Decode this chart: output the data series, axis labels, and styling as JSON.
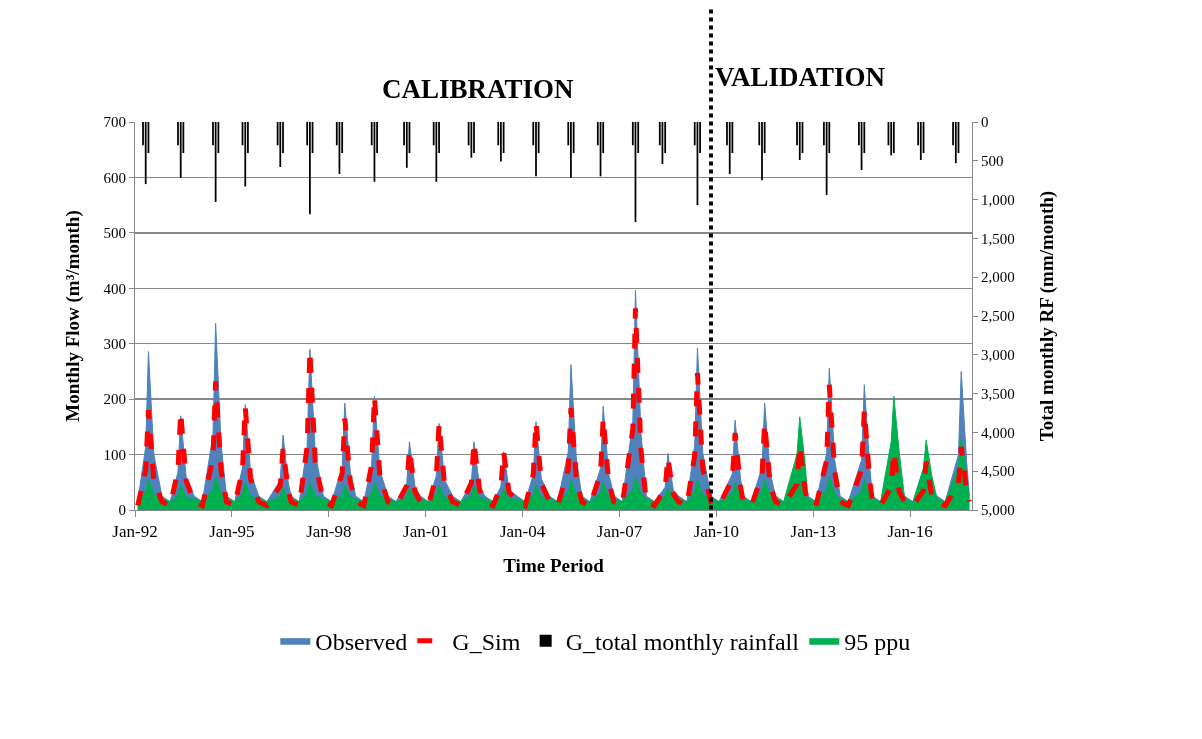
{
  "chart_data": {
    "type": "area",
    "xlabel": "Time Period",
    "ylabel": "Monthly Flow (m³/month)",
    "y2label": "Total monthly RF (mm/month)",
    "annotations": [
      "CALIBRATION",
      "VALIDATION"
    ],
    "x": [
      "1992-02",
      "1992-05",
      "1992-06",
      "1992-08",
      "1992-11",
      "1993-02",
      "1993-05",
      "1993-06",
      "1993-08",
      "1993-11",
      "1994-02",
      "1994-06",
      "1994-07",
      "1994-09",
      "1994-11",
      "1995-02",
      "1995-05",
      "1995-06",
      "1995-08",
      "1995-11",
      "1996-02",
      "1996-07",
      "1996-08",
      "1996-10",
      "1996-11",
      "1997-02",
      "1997-05",
      "1997-06",
      "1997-08",
      "1997-11",
      "1998-02",
      "1998-06",
      "1998-07",
      "1998-09",
      "1998-11",
      "1999-02",
      "1999-05",
      "1999-06",
      "1999-08",
      "1999-11",
      "2000-02",
      "2000-06",
      "2000-07",
      "2000-09",
      "2000-11",
      "2001-02",
      "2001-05",
      "2001-06",
      "2001-08",
      "2001-11",
      "2002-02",
      "2002-06",
      "2002-07",
      "2002-09",
      "2002-11",
      "2003-02",
      "2003-05",
      "2003-06",
      "2003-08",
      "2003-11",
      "2004-02",
      "2004-05",
      "2004-06",
      "2004-08",
      "2004-11",
      "2005-02",
      "2005-06",
      "2005-07",
      "2005-09",
      "2005-11",
      "2006-02",
      "2006-06",
      "2006-07",
      "2006-09",
      "2006-11",
      "2007-02",
      "2007-06",
      "2007-07",
      "2007-09",
      "2007-11",
      "2008-02",
      "2008-06",
      "2008-07",
      "2008-09",
      "2008-11",
      "2009-02",
      "2009-05",
      "2009-06",
      "2009-08",
      "2009-11",
      "2010-02",
      "2010-07",
      "2010-08",
      "2010-10",
      "2010-11",
      "2011-02",
      "2011-06",
      "2011-07",
      "2011-09",
      "2011-11",
      "2012-02",
      "2012-07",
      "2012-08",
      "2012-10",
      "2012-11",
      "2013-02",
      "2013-06",
      "2013-07",
      "2013-09",
      "2013-11",
      "2014-02",
      "2014-07",
      "2014-08",
      "2014-10",
      "2014-11",
      "2015-02",
      "2015-06",
      "2015-07",
      "2015-09",
      "2015-11",
      "2016-02",
      "2016-06",
      "2016-07",
      "2016-09",
      "2016-11",
      "2017-02",
      "2017-07",
      "2017-08",
      "2017-10",
      "2017-11"
    ],
    "series": [
      {
        "name": "Observed",
        "color": "#4f81bd",
        "values": [
          15,
          114,
          286,
          100,
          25,
          15,
          68,
          170,
          60,
          25,
          15,
          135,
          337,
          118,
          25,
          15,
          76,
          190,
          67,
          25,
          15,
          54,
          135,
          47,
          25,
          15,
          116,
          290,
          102,
          25,
          15,
          77,
          193,
          68,
          25,
          15,
          82,
          205,
          72,
          25,
          15,
          49,
          123,
          43,
          25,
          15,
          62,
          156,
          55,
          25,
          15,
          49,
          123,
          43,
          25,
          15,
          42,
          105,
          37,
          25,
          15,
          64,
          159,
          56,
          25,
          15,
          105,
          262,
          92,
          25,
          15,
          75,
          187,
          65,
          25,
          15,
          159,
          397,
          139,
          25,
          15,
          41,
          102,
          36,
          25,
          15,
          117,
          292,
          102,
          25,
          15,
          65,
          162,
          57,
          25,
          15,
          77,
          193,
          68,
          25,
          15,
          47,
          117,
          41,
          25,
          15,
          102,
          256,
          90,
          25,
          15,
          90,
          226,
          79,
          25,
          15,
          44,
          110,
          39,
          25,
          15,
          43,
          108,
          38,
          25,
          15,
          100,
          250,
          88,
          25
        ]
      },
      {
        "name": "G_Sim",
        "type": "line",
        "line_style": "dashed",
        "color": "#ff0000",
        "values": [
          8,
          72,
          180,
          54,
          15,
          8,
          71,
          177,
          53,
          15,
          8,
          93,
          232,
          70,
          15,
          8,
          74,
          186,
          56,
          15,
          8,
          44,
          110,
          33,
          15,
          8,
          115,
          288,
          86,
          15,
          8,
          66,
          165,
          50,
          15,
          8,
          82,
          205,
          62,
          15,
          8,
          44,
          110,
          33,
          15,
          8,
          62,
          156,
          47,
          15,
          8,
          49,
          123,
          37,
          15,
          8,
          42,
          105,
          32,
          15,
          8,
          64,
          159,
          48,
          15,
          8,
          74,
          184,
          55,
          15,
          8,
          66,
          166,
          50,
          15,
          8,
          146,
          364,
          109,
          15,
          8,
          38,
          95,
          29,
          15,
          8,
          99,
          247,
          74,
          15,
          8,
          56,
          139,
          42,
          15,
          8,
          63,
          157,
          47,
          15,
          8,
          47,
          117,
          35,
          15,
          8,
          90,
          226,
          68,
          15,
          8,
          72,
          180,
          54,
          15,
          8,
          42,
          105,
          32,
          15,
          8,
          35,
          87,
          26,
          15,
          8,
          46,
          114,
          34,
          15
        ]
      },
      {
        "name": "G_total monthly rainfall",
        "type": "bar",
        "axis": "y2",
        "color": "#000000",
        "x": [
          "1992-04",
          "1992-05",
          "1992-06",
          "1993-05",
          "1993-06",
          "1993-07",
          "1994-06",
          "1994-07",
          "1994-08",
          "1995-05",
          "1995-06",
          "1995-07",
          "1996-06",
          "1996-07",
          "1996-08",
          "1997-05",
          "1997-06",
          "1997-07",
          "1998-04",
          "1998-05",
          "1998-06",
          "1999-05",
          "1999-06",
          "1999-07",
          "2000-05",
          "2000-06",
          "2000-07",
          "2001-04",
          "2001-05",
          "2001-06",
          "2002-05",
          "2002-06",
          "2002-07",
          "2003-04",
          "2003-05",
          "2003-06",
          "2004-05",
          "2004-06",
          "2004-07",
          "2005-06",
          "2005-07",
          "2005-08",
          "2006-05",
          "2006-06",
          "2006-07",
          "2007-06",
          "2007-07",
          "2007-08",
          "2008-04",
          "2008-05",
          "2008-06",
          "2009-05",
          "2009-06",
          "2009-07",
          "2010-05",
          "2010-06",
          "2010-07",
          "2011-05",
          "2011-06",
          "2011-07",
          "2012-07",
          "2012-08",
          "2012-09",
          "2013-05",
          "2013-06",
          "2013-07",
          "2014-06",
          "2014-07",
          "2014-08",
          "2015-05",
          "2015-06",
          "2015-07",
          "2016-04",
          "2016-05",
          "2016-06",
          "2017-05",
          "2017-06",
          "2017-07"
        ],
        "values": [
          300,
          800,
          400,
          300,
          720,
          400,
          300,
          1030,
          400,
          300,
          830,
          400,
          300,
          580,
          400,
          300,
          1190,
          400,
          300,
          670,
          400,
          300,
          770,
          400,
          300,
          590,
          400,
          300,
          770,
          400,
          300,
          460,
          400,
          300,
          510,
          400,
          300,
          700,
          400,
          300,
          720,
          400,
          300,
          700,
          400,
          300,
          1290,
          400,
          300,
          540,
          400,
          300,
          1070,
          400,
          300,
          670,
          400,
          300,
          750,
          400,
          300,
          490,
          400,
          300,
          940,
          400,
          300,
          620,
          400,
          300,
          430,
          400,
          300,
          490,
          400,
          300,
          530,
          400
        ]
      },
      {
        "name": "95 ppu",
        "color": "#00b050",
        "values": [
          15,
          33,
          55,
          28,
          20,
          15,
          27,
          45,
          23,
          20,
          15,
          36,
          60,
          30,
          20,
          15,
          30,
          50,
          25,
          20,
          15,
          24,
          40,
          20,
          20,
          15,
          30,
          50,
          25,
          20,
          15,
          27,
          45,
          23,
          20,
          15,
          30,
          50,
          25,
          20,
          15,
          24,
          40,
          20,
          20,
          15,
          27,
          45,
          23,
          20,
          15,
          27,
          45,
          23,
          20,
          15,
          24,
          40,
          20,
          20,
          15,
          27,
          45,
          23,
          20,
          15,
          33,
          55,
          28,
          20,
          15,
          30,
          50,
          25,
          20,
          15,
          36,
          60,
          30,
          20,
          15,
          24,
          40,
          20,
          20,
          15,
          33,
          55,
          28,
          20,
          15,
          30,
          50,
          25,
          20,
          15,
          33,
          55,
          28,
          20,
          15,
          101,
          168,
          84,
          20,
          15,
          36,
          60,
          30,
          20,
          15,
          33,
          55,
          28,
          20,
          15,
          123,
          205,
          103,
          20,
          15,
          76,
          126,
          63,
          20,
          15,
          78,
          130,
          65,
          20
        ]
      }
    ],
    "xlim": [
      "1992-01",
      "2017-12"
    ],
    "xticks": [
      {
        "value": "1992-01",
        "label": "Jan-92"
      },
      {
        "value": "1995-01",
        "label": "Jan-95"
      },
      {
        "value": "1998-01",
        "label": "Jan-98"
      },
      {
        "value": "2001-01",
        "label": "Jan-01"
      },
      {
        "value": "2004-01",
        "label": "Jan-04"
      },
      {
        "value": "2007-01",
        "label": "Jan-07"
      },
      {
        "value": "2010-01",
        "label": "Jan-10"
      },
      {
        "value": "2013-01",
        "label": "Jan-13"
      },
      {
        "value": "2016-01",
        "label": "Jan-16"
      }
    ],
    "ylim": [
      0,
      700
    ],
    "yticks": [
      0,
      100,
      200,
      300,
      400,
      500,
      600,
      700
    ],
    "y2lim": [
      5000,
      0
    ],
    "y2ticks": [
      0,
      500,
      {
        "value": 1000,
        "label": "1,000"
      },
      {
        "value": 1500,
        "label": "1,500"
      },
      {
        "value": 2000,
        "label": "2,000"
      },
      {
        "value": 2500,
        "label": "2,500"
      },
      {
        "value": 3000,
        "label": "3,000"
      },
      {
        "value": 3500,
        "label": "3,500"
      },
      {
        "value": 4000,
        "label": "4,000"
      },
      {
        "value": 4500,
        "label": "4,500"
      },
      {
        "value": 5000,
        "label": "5,000"
      }
    ],
    "ref_lines": [
      {
        "axis": "x",
        "value": "2009-11",
        "line_style": "dotted",
        "color": "#000000"
      }
    ],
    "grid": "y",
    "legend": "bottom"
  }
}
